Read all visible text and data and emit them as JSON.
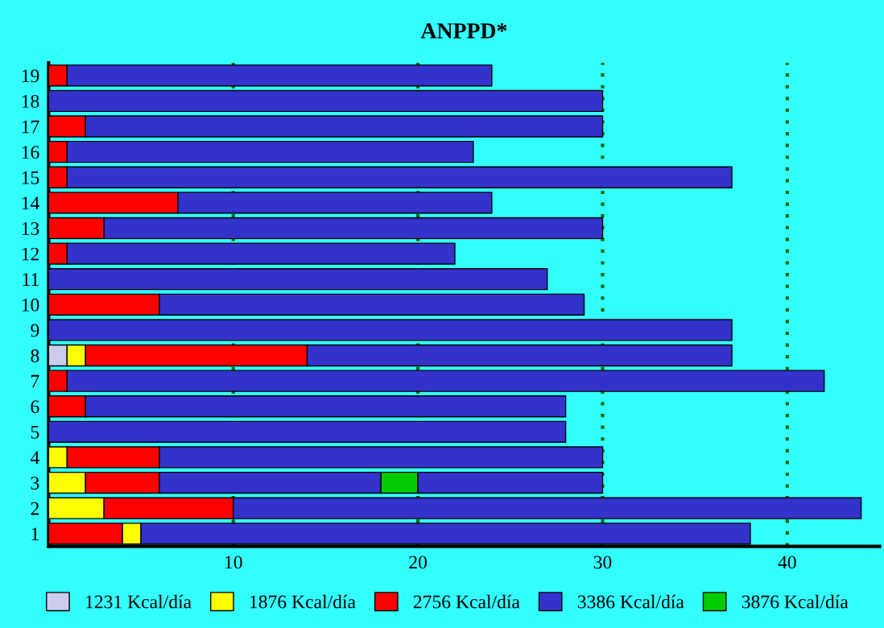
{
  "chart_data": {
    "type": "bar",
    "orientation": "horizontal",
    "stacked": true,
    "title": "ANPPD*",
    "categories": [
      "19",
      "18",
      "17",
      "16",
      "15",
      "14",
      "13",
      "12",
      "11",
      "10",
      "9",
      "8",
      "7",
      "6",
      "5",
      "4",
      "3",
      "2",
      "1"
    ],
    "series": [
      {
        "name": "1231 Kcal/día",
        "color": "#ccccee",
        "values": [
          null,
          null,
          null,
          null,
          null,
          null,
          null,
          null,
          null,
          null,
          null,
          1,
          null,
          null,
          null,
          null,
          null,
          null,
          null
        ]
      },
      {
        "name": "1876 Kcal/día",
        "color": "#ffff00",
        "values": [
          null,
          null,
          null,
          null,
          null,
          null,
          null,
          null,
          null,
          null,
          null,
          1,
          null,
          null,
          null,
          1,
          2,
          3,
          null
        ]
      },
      {
        "name": "2756 Kcal/día",
        "color": "#ff0000",
        "values": [
          1,
          null,
          2,
          1,
          1,
          7,
          3,
          1,
          null,
          6,
          null,
          12,
          1,
          2,
          null,
          5,
          4,
          7,
          4
        ]
      },
      {
        "color": "#ffff00",
        "values": [
          null,
          null,
          null,
          null,
          null,
          null,
          null,
          null,
          null,
          null,
          null,
          null,
          null,
          null,
          null,
          null,
          null,
          null,
          1
        ]
      },
      {
        "name": "3386 Kcal/día",
        "color": "#3333cc",
        "values": [
          23,
          30,
          28,
          22,
          36,
          17,
          27,
          21,
          27,
          23,
          37,
          23,
          41,
          26,
          28,
          24,
          12,
          34,
          33
        ]
      },
      {
        "name": "3876 Kcal/día",
        "color": "#00cc00",
        "values": [
          null,
          null,
          null,
          null,
          null,
          null,
          null,
          null,
          null,
          null,
          null,
          null,
          null,
          null,
          null,
          null,
          2,
          null,
          null
        ]
      },
      {
        "color": "#3333cc",
        "values": [
          null,
          null,
          null,
          null,
          null,
          null,
          null,
          null,
          null,
          null,
          null,
          null,
          null,
          null,
          null,
          null,
          10,
          null,
          null
        ]
      }
    ],
    "xlim": [
      0,
      45
    ],
    "xticks": [
      10,
      20,
      30,
      40
    ],
    "grid": "x",
    "legend": "bottom"
  }
}
